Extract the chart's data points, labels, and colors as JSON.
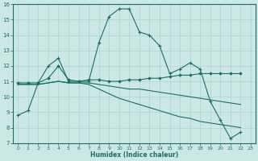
{
  "xlabel": "Humidex (Indice chaleur)",
  "bg_color": "#cce8e4",
  "grid_color": "#aad4d0",
  "line_color": "#1a6e64",
  "xlim": [
    -0.5,
    23.5
  ],
  "ylim": [
    7,
    16
  ],
  "xticks": [
    0,
    1,
    2,
    3,
    4,
    5,
    6,
    7,
    8,
    9,
    10,
    11,
    12,
    13,
    14,
    15,
    16,
    17,
    18,
    19,
    20,
    21,
    22,
    23
  ],
  "yticks": [
    7,
    8,
    9,
    10,
    11,
    12,
    13,
    14,
    15,
    16
  ],
  "series_plus": [
    0,
    1,
    2,
    3,
    4,
    5,
    6,
    7,
    8,
    9,
    10,
    11,
    12,
    13,
    14,
    15,
    16,
    17,
    18,
    19,
    20,
    21,
    22
  ],
  "values_plus": [
    8.8,
    9.1,
    10.9,
    12.0,
    12.5,
    11.0,
    11.0,
    11.0,
    13.5,
    15.2,
    15.7,
    15.7,
    14.2,
    14.0,
    13.3,
    11.5,
    11.8,
    12.2,
    11.8,
    9.7,
    8.5,
    7.3,
    7.7
  ],
  "series_diamond": [
    0,
    1,
    2,
    3,
    4,
    5,
    6,
    7,
    8,
    9,
    10,
    11,
    12,
    13,
    14,
    15,
    16,
    17,
    18,
    19,
    20,
    21,
    22
  ],
  "values_diamond": [
    10.9,
    10.9,
    10.9,
    11.2,
    12.0,
    11.1,
    11.0,
    11.1,
    11.1,
    11.0,
    11.0,
    11.1,
    11.1,
    11.2,
    11.2,
    11.3,
    11.4,
    11.4,
    11.5,
    11.5,
    11.5,
    11.5,
    11.5
  ],
  "series_flat": [
    0,
    1,
    2,
    3,
    4,
    5,
    6,
    7,
    8,
    9,
    10,
    11,
    12,
    13,
    14,
    15,
    16,
    17,
    18,
    19,
    20,
    21,
    22
  ],
  "values_flat": [
    10.8,
    10.8,
    10.8,
    10.9,
    11.0,
    10.9,
    10.9,
    10.9,
    10.8,
    10.7,
    10.6,
    10.5,
    10.5,
    10.4,
    10.3,
    10.2,
    10.1,
    10.0,
    9.9,
    9.8,
    9.7,
    9.6,
    9.5
  ],
  "series_decline": [
    0,
    1,
    2,
    3,
    4,
    5,
    6,
    7,
    8,
    9,
    10,
    11,
    12,
    13,
    14,
    15,
    16,
    17,
    18,
    19,
    20,
    21,
    22
  ],
  "values_decline": [
    10.8,
    10.8,
    10.8,
    10.9,
    11.0,
    10.9,
    10.9,
    10.8,
    10.5,
    10.2,
    9.9,
    9.7,
    9.5,
    9.3,
    9.1,
    8.9,
    8.7,
    8.6,
    8.4,
    8.3,
    8.2,
    8.1,
    8.0
  ]
}
